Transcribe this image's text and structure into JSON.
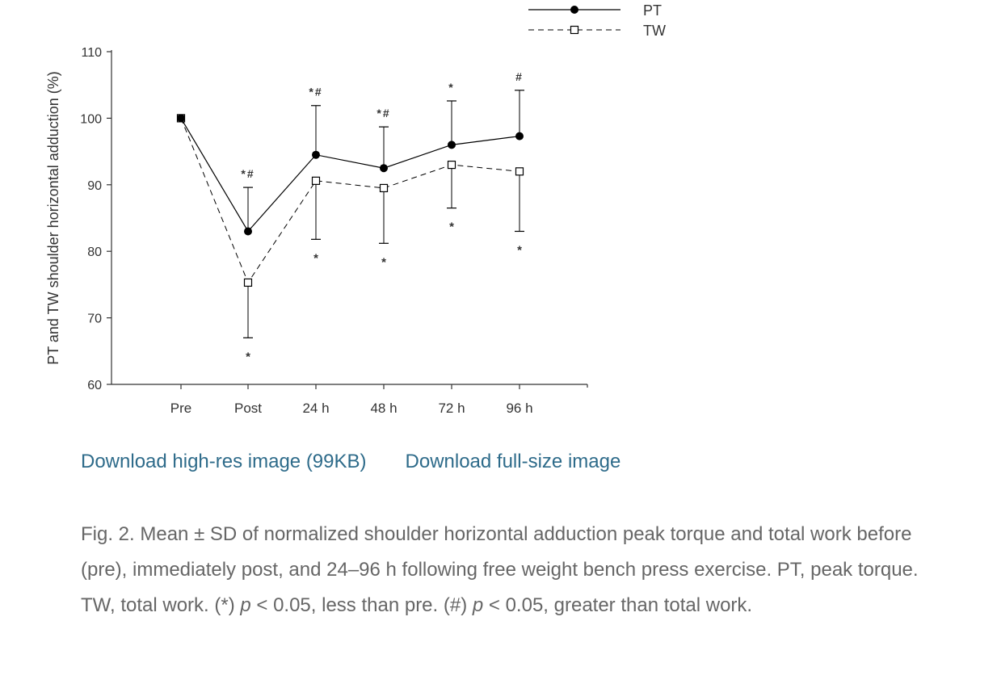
{
  "chart_data": {
    "type": "line",
    "ylabel": "PT and TW shoulder horizontal adduction (%)",
    "xlabel": "",
    "categories": [
      "Pre",
      "Post",
      "24 h",
      "48 h",
      "72 h",
      "96 h"
    ],
    "ylim": [
      60,
      110
    ],
    "yticks": [
      60,
      70,
      80,
      90,
      100,
      110
    ],
    "legend_position": "top-right",
    "series": [
      {
        "name": "PT",
        "style": "solid line, filled circle",
        "values": [
          100,
          83,
          94.5,
          92.5,
          96,
          97.3
        ],
        "error_upper": [
          null,
          89.6,
          101.9,
          98.7,
          102.6,
          104.2
        ],
        "error_lower": [
          null,
          null,
          null,
          null,
          null,
          null
        ],
        "annotations_above": [
          "",
          "*#",
          "*#",
          "*#",
          "*",
          "#"
        ]
      },
      {
        "name": "TW",
        "style": "dashed line, open square",
        "values": [
          100,
          75.3,
          90.6,
          89.5,
          93,
          92
        ],
        "error_upper": [
          null,
          null,
          null,
          null,
          null,
          null
        ],
        "error_lower": [
          null,
          67,
          81.8,
          81.2,
          86.5,
          83
        ],
        "annotations_below": [
          "",
          "*",
          "*",
          "*",
          "*",
          "*"
        ]
      }
    ],
    "colors": {
      "line": "#000000",
      "axis": "#333333"
    }
  },
  "links": {
    "hires": "Download high-res image (99KB)",
    "fullsize": "Download full-size image"
  },
  "caption": {
    "part1": "Fig. 2. Mean ± SD of normalized shoulder horizontal adduction peak torque and total work before (pre), immediately post, and 24–96 h following free weight bench press exercise. PT, peak torque. TW, total work. (*) ",
    "p1": "p",
    "part2": " < 0.05, less than pre. (#) ",
    "p2": "p",
    "part3": " < 0.05, greater than total work."
  }
}
